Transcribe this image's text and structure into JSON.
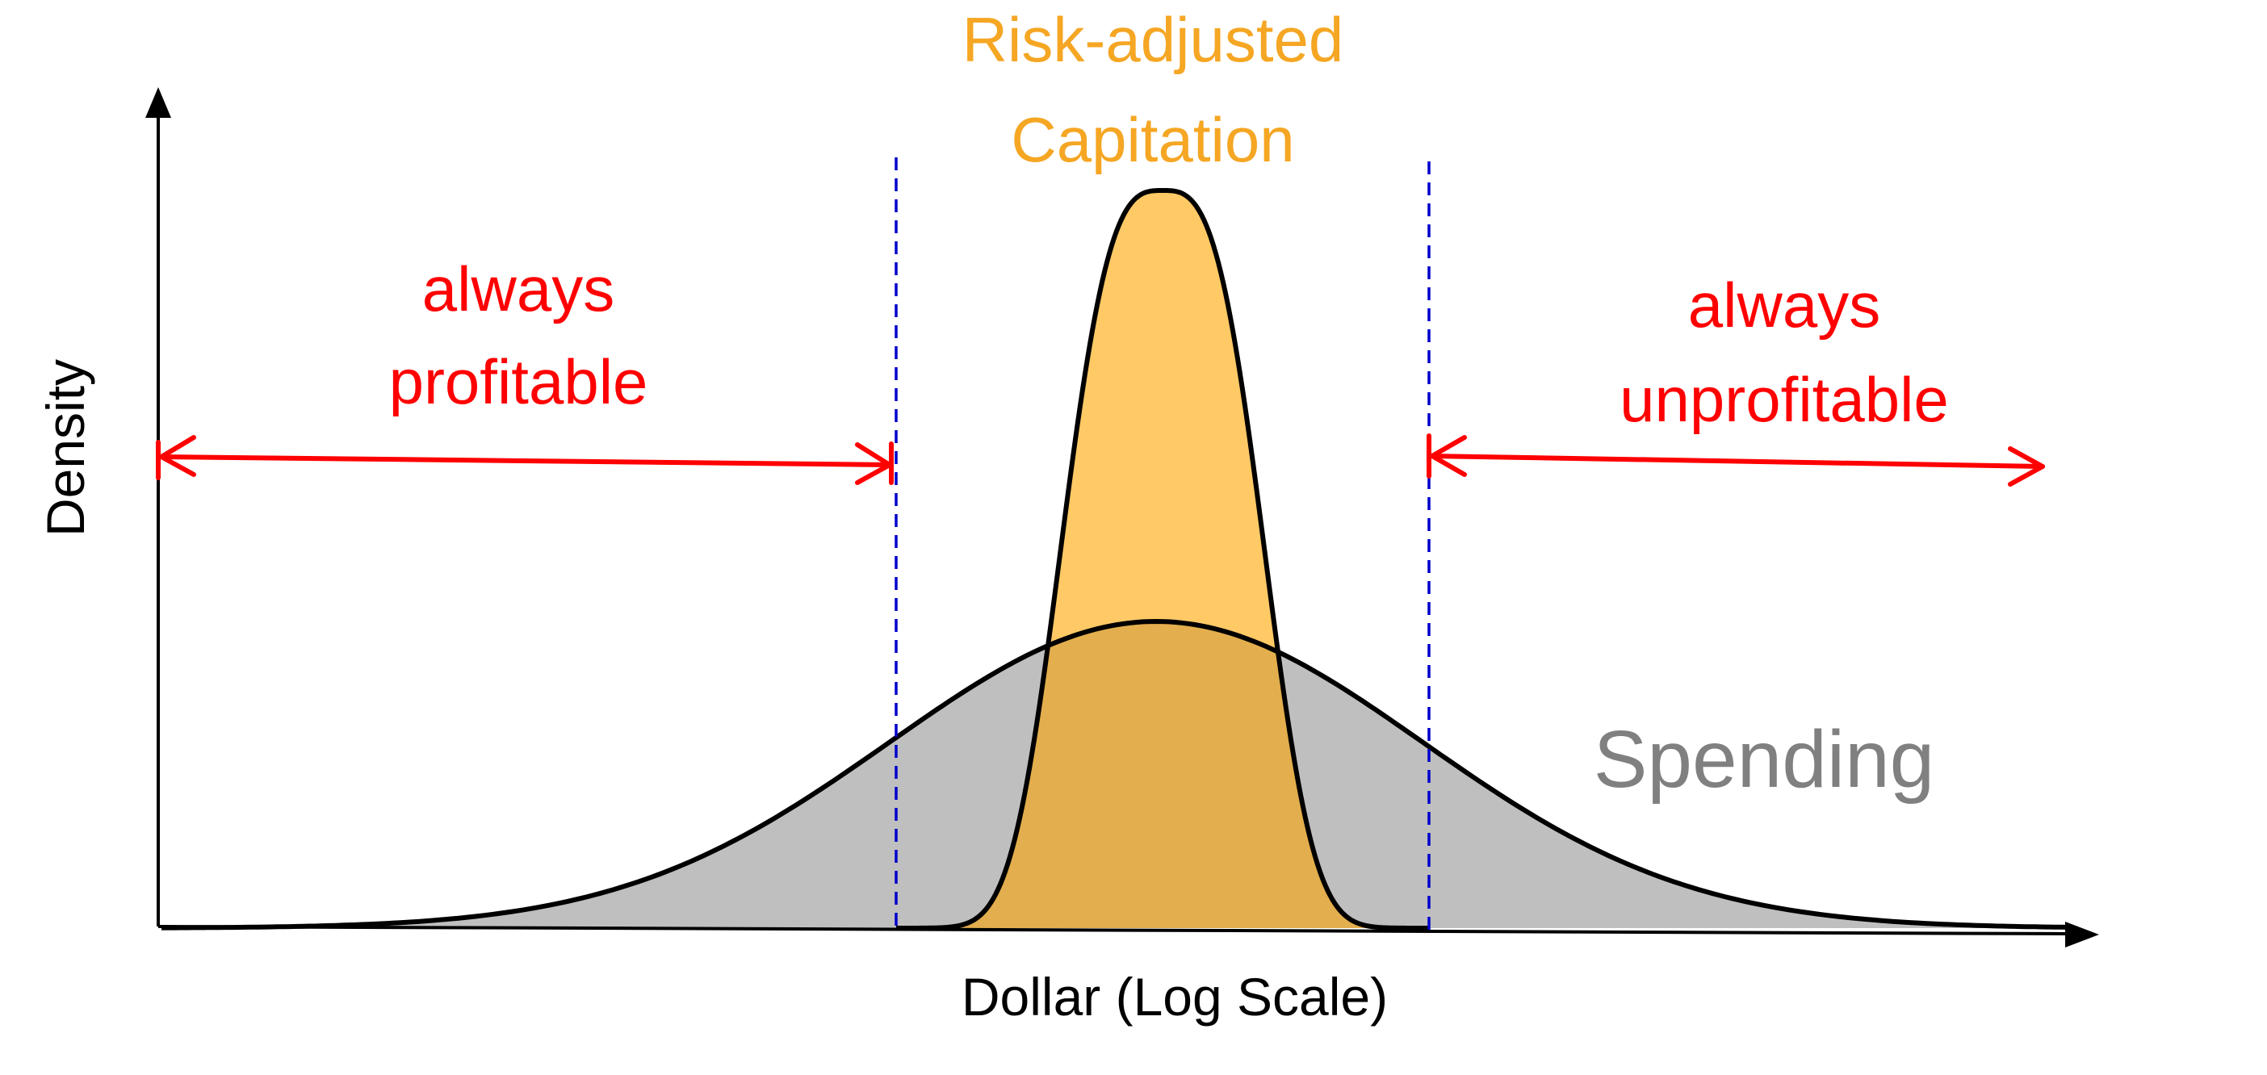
{
  "axes": {
    "x_label": "Dollar (Log Scale)",
    "y_label": "Density"
  },
  "distributions": {
    "capitation": {
      "label": "Risk-adjusted",
      "label_line2": "Capitation",
      "color": "#F5A623",
      "fill": "#FFC966"
    },
    "spending": {
      "label": "Spending",
      "color": "#808080",
      "fill": "#BFBFBF"
    }
  },
  "regions": {
    "left": {
      "line1": "always",
      "line2": "profitable"
    },
    "right": {
      "line1": "always",
      "line2": "unprofitable"
    }
  },
  "colors": {
    "annotation": "#FF0000",
    "boundary": "#0000CC",
    "axis": "#000000",
    "overlap": "#E3AE4D"
  }
}
